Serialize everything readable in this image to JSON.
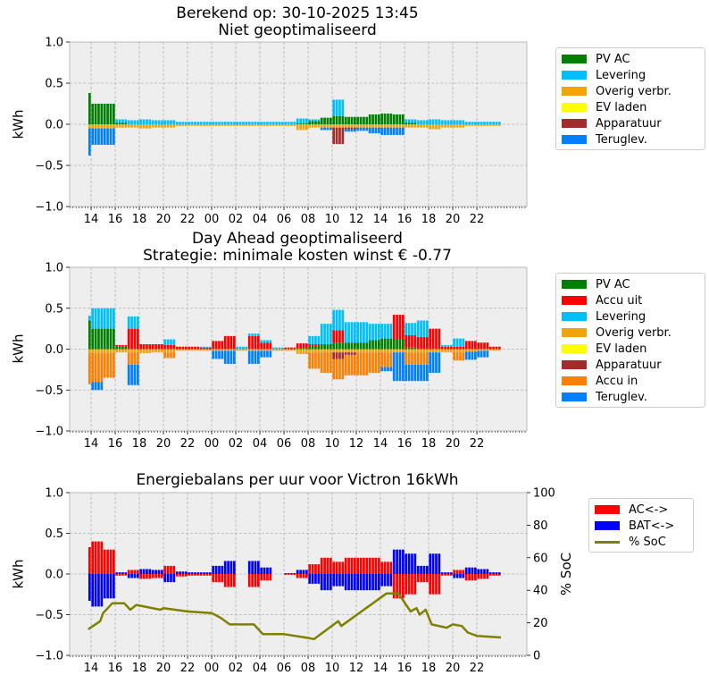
{
  "x_ticks": [
    "14",
    "16",
    "18",
    "20",
    "22",
    "00",
    "02",
    "04",
    "06",
    "08",
    "10",
    "12",
    "14",
    "16",
    "18",
    "20",
    "22"
  ],
  "y_ticks": [
    "1.0",
    "0.5",
    "0.0",
    "−0.5",
    "−1.0"
  ],
  "y2_ticks": [
    "0",
    "20",
    "40",
    "60",
    "80",
    "100"
  ],
  "chart_data": [
    {
      "type": "bar",
      "stacked": true,
      "title": [
        "Berekend op: 30-10-2025 13:45",
        "Niet geoptimaliseerd"
      ],
      "ylabel": "kWh",
      "ylim": [
        -1,
        1
      ],
      "grid": true,
      "legend_placement": "outside-right",
      "start": "13:45",
      "interval": "15 min",
      "x": [
        "13:00",
        "14:00",
        "15:00",
        "16:00",
        "17:00",
        "18:00",
        "19:00",
        "20:00",
        "21:00",
        "22:00",
        "23:00",
        "00:00",
        "01:00",
        "02:00",
        "03:00",
        "04:00",
        "05:00",
        "06:00",
        "07:00",
        "08:00",
        "09:00",
        "10:00",
        "11:00",
        "12:00",
        "13:00",
        "14:00",
        "15:00",
        "16:00",
        "17:00",
        "18:00",
        "19:00",
        "20:00",
        "21:00",
        "22:00",
        "23:00"
      ],
      "series": [
        {
          "name": "PV AC",
          "color": "#008000",
          "values": [
            0.38,
            0.25,
            0.25,
            0.02,
            0,
            0,
            0,
            0,
            0,
            0,
            0,
            0,
            0,
            0,
            0,
            0,
            0,
            0,
            0.01,
            0.04,
            0.08,
            0.1,
            0.09,
            0.09,
            0.12,
            0.13,
            0.12,
            0.02,
            0,
            0,
            0,
            0,
            0,
            0,
            0
          ]
        },
        {
          "name": "Levering",
          "color": "#00bfff",
          "values": [
            0,
            0,
            0,
            0.04,
            0.05,
            0.06,
            0.05,
            0.05,
            0.03,
            0.03,
            0.03,
            0.03,
            0.03,
            0.03,
            0.03,
            0.03,
            0.03,
            0.03,
            0.06,
            0.02,
            0,
            0.2,
            0,
            0,
            0,
            0,
            0,
            0.04,
            0.05,
            0.06,
            0.05,
            0.05,
            0.03,
            0.03,
            0.03
          ]
        },
        {
          "name": "Overig verbr.",
          "color": "#f0a30a",
          "values": [
            -0.05,
            -0.05,
            -0.05,
            -0.04,
            -0.04,
            -0.05,
            -0.04,
            -0.04,
            -0.02,
            -0.02,
            -0.02,
            -0.02,
            -0.02,
            -0.02,
            -0.02,
            -0.02,
            -0.02,
            -0.02,
            -0.07,
            -0.04,
            -0.04,
            -0.04,
            -0.04,
            -0.04,
            -0.04,
            -0.04,
            -0.04,
            -0.04,
            -0.04,
            -0.06,
            -0.04,
            -0.04,
            -0.02,
            -0.02,
            -0.02
          ]
        },
        {
          "name": "EV laden",
          "color": "#ffff00",
          "values": [
            0,
            0,
            0,
            0,
            0,
            0,
            0,
            0,
            0,
            0,
            0,
            0,
            0,
            0,
            0,
            0,
            0,
            0,
            0,
            0,
            0,
            0,
            0,
            0,
            0,
            0,
            0,
            0,
            0,
            0,
            0,
            0,
            0,
            0,
            0
          ]
        },
        {
          "name": "Apparatuur",
          "color": "#a52a2a",
          "values": [
            0,
            0,
            0,
            0,
            0,
            0,
            0,
            0,
            0,
            0,
            0,
            0,
            0,
            0,
            0,
            0,
            0,
            0,
            0,
            0,
            0,
            -0.2,
            -0.02,
            0,
            0,
            0,
            0,
            0,
            0,
            0,
            0,
            0,
            0,
            0,
            0
          ]
        },
        {
          "name": "Teruglev.",
          "color": "#0080ff",
          "values": [
            -0.33,
            -0.2,
            -0.2,
            0,
            0,
            0,
            0,
            0,
            0,
            0,
            0,
            0,
            0,
            0,
            0,
            0,
            0,
            0,
            0,
            0,
            -0.03,
            0,
            -0.03,
            -0.04,
            -0.07,
            -0.09,
            -0.09,
            0,
            0,
            0,
            0,
            0,
            0,
            0,
            0
          ]
        }
      ]
    },
    {
      "type": "bar",
      "stacked": true,
      "title": [
        "Day Ahead geoptimaliseerd",
        "Strategie: minimale kosten winst € -0.77"
      ],
      "ylabel": "kWh",
      "ylim": [
        -1,
        1
      ],
      "grid": true,
      "legend_placement": "outside-right",
      "start": "13:45",
      "interval": "15 min",
      "x": [
        "13:00",
        "14:00",
        "15:00",
        "16:00",
        "17:00",
        "18:00",
        "19:00",
        "20:00",
        "21:00",
        "22:00",
        "23:00",
        "00:00",
        "01:00",
        "02:00",
        "03:00",
        "04:00",
        "05:00",
        "06:00",
        "07:00",
        "08:00",
        "09:00",
        "10:00",
        "11:00",
        "12:00",
        "13:00",
        "14:00",
        "15:00",
        "16:00",
        "17:00",
        "18:00",
        "19:00",
        "20:00",
        "21:00",
        "22:00",
        "23:00"
      ],
      "series": [
        {
          "name": "PV AC",
          "color": "#008000",
          "values": [
            0.35,
            0.25,
            0.25,
            0.03,
            0,
            0,
            0,
            0,
            0,
            0,
            0,
            0,
            0,
            0,
            0,
            0,
            0,
            0,
            0.01,
            0.04,
            0.06,
            0.08,
            0.08,
            0.08,
            0.11,
            0.13,
            0.12,
            0.02,
            0,
            0,
            0,
            0,
            0,
            0,
            0
          ]
        },
        {
          "name": "Accu uit",
          "color": "#ff0000",
          "values": [
            0,
            0,
            0,
            0.02,
            0.25,
            0.06,
            0.06,
            0.05,
            0.03,
            0.03,
            0.02,
            0.1,
            0.16,
            0,
            0.16,
            0.08,
            0,
            0.02,
            0.06,
            0.02,
            0,
            0.15,
            0,
            0,
            0,
            0,
            0.3,
            0.15,
            0.15,
            0.25,
            0.03,
            0.03,
            0.1,
            0.08,
            0.03
          ]
        },
        {
          "name": "Levering",
          "color": "#00bfff",
          "values": [
            0.06,
            0.25,
            0.25,
            0,
            0.15,
            0,
            0,
            0.07,
            0,
            0,
            0.01,
            0,
            0,
            0.03,
            0.03,
            0.03,
            0.02,
            0,
            0,
            0.1,
            0.25,
            0.25,
            0.25,
            0.25,
            0.2,
            0.18,
            0,
            0.15,
            0.2,
            0,
            0.02,
            0.1,
            0,
            0,
            0
          ]
        },
        {
          "name": "Overig verbr.",
          "color": "#f0a30a",
          "values": [
            -0.05,
            -0.05,
            -0.05,
            -0.04,
            -0.04,
            -0.05,
            -0.04,
            -0.04,
            -0.02,
            -0.02,
            -0.02,
            -0.02,
            -0.02,
            -0.02,
            -0.02,
            -0.02,
            -0.02,
            -0.02,
            -0.06,
            -0.04,
            -0.04,
            -0.04,
            -0.04,
            -0.04,
            -0.04,
            -0.04,
            -0.04,
            -0.04,
            -0.04,
            -0.04,
            -0.04,
            -0.04,
            -0.03,
            -0.02,
            -0.02
          ]
        },
        {
          "name": "EV laden",
          "color": "#ffff00",
          "values": [
            0,
            0,
            0,
            0,
            0,
            0,
            0,
            0,
            0,
            0,
            0,
            0,
            0,
            0,
            0,
            0,
            0,
            0,
            0,
            0,
            0,
            0,
            0,
            0,
            0,
            0,
            0,
            0,
            0,
            0,
            0,
            0,
            0,
            0,
            0
          ]
        },
        {
          "name": "Apparatuur",
          "color": "#a52a2a",
          "values": [
            0,
            0,
            0,
            0,
            0,
            0,
            0,
            0,
            0,
            0,
            0,
            0,
            0,
            0,
            0,
            0,
            0,
            0,
            0,
            0,
            0,
            -0.08,
            -0.03,
            0,
            0,
            0,
            0,
            0,
            0,
            0,
            0,
            0,
            0,
            0,
            0
          ]
        },
        {
          "name": "Accu in",
          "color": "#ff8000",
          "values": [
            -0.38,
            -0.35,
            -0.3,
            0,
            -0.15,
            0,
            0,
            -0.07,
            0,
            0,
            0,
            0,
            0,
            0,
            0,
            0,
            0,
            0,
            0,
            -0.2,
            -0.25,
            -0.25,
            -0.25,
            -0.28,
            -0.25,
            -0.18,
            0,
            -0.15,
            -0.15,
            0,
            0,
            -0.1,
            0,
            0,
            0
          ]
        },
        {
          "name": "Teruglev.",
          "color": "#0080ff",
          "values": [
            0,
            -0.1,
            0,
            0,
            -0.25,
            0,
            0,
            0,
            0,
            0,
            0,
            -0.1,
            -0.16,
            0,
            -0.16,
            -0.08,
            0,
            0,
            0,
            0,
            0,
            0,
            0,
            0,
            0,
            -0.05,
            -0.35,
            -0.2,
            -0.2,
            -0.25,
            0,
            0,
            -0.1,
            -0.08,
            0
          ]
        }
      ]
    },
    {
      "type": "bar+line",
      "title": [
        "Energiebalans per uur voor Victron 16kWh"
      ],
      "ylabel": "kWh",
      "y2label": "% SoC",
      "ylim": [
        -1,
        1
      ],
      "y2lim": [
        0,
        100
      ],
      "grid": true,
      "legend_placement": "outside-right",
      "start": "13:45",
      "interval": "15 min",
      "x": [
        "13:00",
        "14:00",
        "15:00",
        "16:00",
        "17:00",
        "18:00",
        "19:00",
        "20:00",
        "21:00",
        "22:00",
        "23:00",
        "00:00",
        "01:00",
        "02:00",
        "03:00",
        "04:00",
        "05:00",
        "06:00",
        "07:00",
        "08:00",
        "09:00",
        "10:00",
        "11:00",
        "12:00",
        "13:00",
        "14:00",
        "15:00",
        "16:00",
        "17:00",
        "18:00",
        "19:00",
        "20:00",
        "21:00",
        "22:00",
        "23:00"
      ],
      "series": [
        {
          "name": "AC<->",
          "color": "#ff0000",
          "values": [
            0.33,
            0.4,
            0.3,
            -0.02,
            0.05,
            -0.06,
            -0.05,
            0.1,
            -0.03,
            -0.02,
            -0.02,
            -0.1,
            -0.16,
            0,
            -0.16,
            -0.08,
            0,
            -0.01,
            -0.05,
            0.12,
            0.2,
            0.15,
            0.2,
            0.2,
            0.2,
            0.15,
            -0.3,
            -0.25,
            -0.1,
            -0.25,
            -0.02,
            0.05,
            -0.08,
            -0.06,
            -0.02
          ]
        },
        {
          "name": "BAT<->",
          "color": "#0000ff",
          "values": [
            -0.33,
            -0.4,
            -0.3,
            0.02,
            -0.05,
            0.06,
            0.05,
            -0.1,
            0.03,
            0.02,
            0.02,
            0.1,
            0.16,
            0,
            0.16,
            0.08,
            0,
            0.01,
            0.05,
            -0.12,
            -0.2,
            -0.15,
            -0.2,
            -0.2,
            -0.2,
            -0.15,
            0.3,
            0.25,
            0.1,
            0.25,
            0.02,
            -0.05,
            0.08,
            0.06,
            0.02
          ]
        }
      ],
      "line": {
        "name": "% SoC",
        "color": "#808000",
        "points": [
          [
            "13:45",
            16
          ],
          [
            "14:45",
            21
          ],
          [
            "15:00",
            26
          ],
          [
            "15:45",
            32
          ],
          [
            "16:45",
            32
          ],
          [
            "17:15",
            28
          ],
          [
            "17:45",
            31
          ],
          [
            "19:45",
            28
          ],
          [
            "20:00",
            29
          ],
          [
            "22:00",
            27
          ],
          [
            "00:00",
            26
          ],
          [
            "00:45",
            23
          ],
          [
            "01:30",
            19
          ],
          [
            "03:30",
            19
          ],
          [
            "04:15",
            13
          ],
          [
            "06:00",
            13
          ],
          [
            "07:45",
            11
          ],
          [
            "08:30",
            10
          ],
          [
            "10:30",
            21
          ],
          [
            "10:45",
            18
          ],
          [
            "14:30",
            38
          ],
          [
            "15:30",
            38
          ],
          [
            "16:30",
            27
          ],
          [
            "17:00",
            29
          ],
          [
            "17:15",
            25
          ],
          [
            "17:45",
            28
          ],
          [
            "18:15",
            19
          ],
          [
            "19:30",
            17
          ],
          [
            "20:00",
            19
          ],
          [
            "20:45",
            18
          ],
          [
            "21:15",
            14
          ],
          [
            "22:00",
            12
          ],
          [
            "24:00",
            11
          ]
        ]
      }
    }
  ]
}
